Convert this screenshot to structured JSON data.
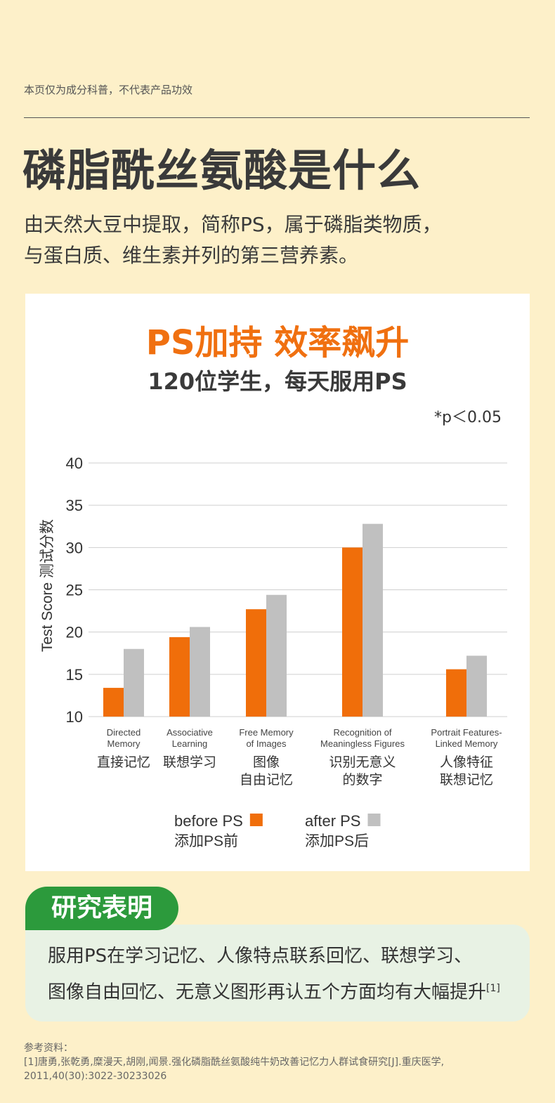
{
  "disclaimer": "本页仅为成分科普，不代表产品功效",
  "heading": "磷脂酰丝氨酸是什么",
  "intro": {
    "line1": "由天然大豆中提取，简称PS，属于磷脂类物质，",
    "line2": "与蛋白质、维生素并列的第三营养素。"
  },
  "card": {
    "title": "PS加持 效率飙升",
    "subtitle": "120位学生，每天服用PS",
    "p_note": "*p＜0.05"
  },
  "chart_data": {
    "type": "bar",
    "ylabel": "Test Score 测试分数",
    "ylim": [
      10,
      40
    ],
    "yticks": [
      "40",
      "35",
      "30",
      "25",
      "20",
      "15",
      "10"
    ],
    "grid": true,
    "legend_position": "bottom",
    "categories": [
      {
        "en1": "Directed",
        "en2": "Memory",
        "zh1": "直接记忆",
        "zh2": ""
      },
      {
        "en1": "Associative",
        "en2": "Learning",
        "zh1": "联想学习",
        "zh2": ""
      },
      {
        "en1": "Free Memory",
        "en2": "of Images",
        "zh1": "图像",
        "zh2": "自由记忆"
      },
      {
        "en1": "Recognition of",
        "en2": "Meaningless Figures",
        "zh1": "识别无意义",
        "zh2": "的数字"
      },
      {
        "en1": "Portrait Features-",
        "en2": "Linked Memory",
        "zh1": "人像特征",
        "zh2": "联想记忆"
      }
    ],
    "series": [
      {
        "name": "before PS",
        "name_zh": "添加PS前",
        "color": "#f06e0a",
        "values": [
          13.4,
          19.4,
          22.7,
          30.0,
          15.6
        ]
      },
      {
        "name": "after PS",
        "name_zh": "添加PS后",
        "color": "#c0c0c0",
        "values": [
          18.0,
          20.6,
          24.4,
          32.8,
          17.2
        ]
      }
    ]
  },
  "result": {
    "tag": "研究表明",
    "line1": "服用PS在学习记忆、人像特点联系回忆、联想学习、",
    "line2": "图像自由回忆、无意义图形再认五个方面均有大幅提升",
    "sup": "[1]"
  },
  "reference": {
    "label": "参考资料：",
    "line1": "[1]唐勇,张乾勇,糜漫天,胡刚,闻景.强化磷脂酰丝氨酸纯牛奶改善记忆力人群试食研究[J].重庆医学,",
    "line2": "2011,40(30):3022-30233026"
  },
  "colors": {
    "background": "#fdf0c9",
    "accent_orange": "#f07010",
    "accent_green": "#2c9a3c"
  }
}
